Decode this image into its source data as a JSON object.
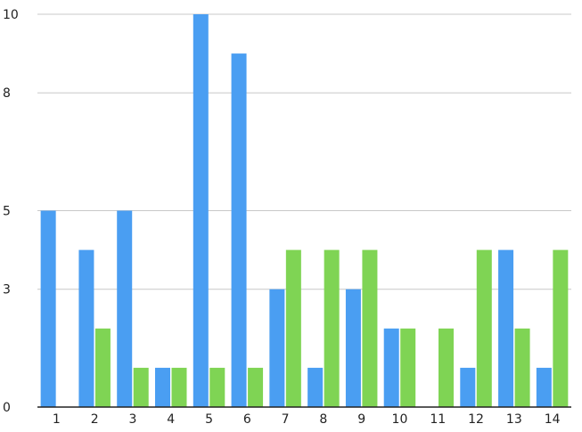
{
  "chart_data": {
    "type": "bar",
    "title": "",
    "xlabel": "",
    "ylabel": "",
    "categories": [
      "1",
      "2",
      "3",
      "4",
      "5",
      "6",
      "7",
      "8",
      "9",
      "10",
      "11",
      "12",
      "13",
      "14"
    ],
    "series": [
      {
        "color": "#4a9ef2",
        "values": [
          5,
          4,
          5,
          1,
          10,
          9,
          3,
          1,
          3,
          2,
          0,
          1,
          4,
          1
        ]
      },
      {
        "color": "#7fd454",
        "values": [
          0,
          2,
          1,
          1,
          1,
          1,
          4,
          4,
          4,
          2,
          2,
          4,
          2,
          4
        ]
      }
    ],
    "ylim": [
      0,
      10
    ],
    "y_ticks": [
      "0",
      "3",
      "5",
      "8",
      "10"
    ],
    "grid": true,
    "legend": "none"
  }
}
